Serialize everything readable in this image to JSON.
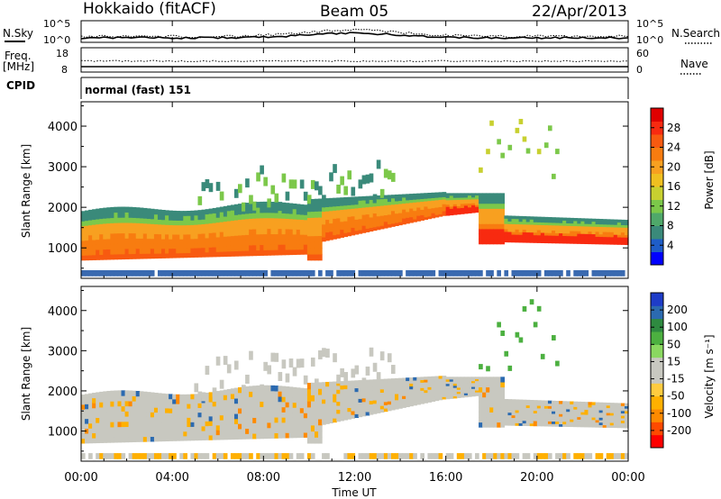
{
  "header": {
    "radar": "Hokkaido (fitACF)",
    "beam": "Beam 05",
    "date": "22/Apr/2013",
    "cpid_text": "normal (fast) 151"
  },
  "labels": {
    "nsky": "N.Sky",
    "nsearch": "N.Search",
    "freq": "Freq.",
    "freq_unit": "[MHz]",
    "nave": "Nave",
    "cpid": "CPID",
    "noise_ticks_left": [
      "10^5",
      "10^0"
    ],
    "noise_ticks_right": [
      "10^5",
      "10^0"
    ],
    "freq_ticks": [
      "18",
      "8"
    ],
    "nave_ticks": [
      "60",
      "0"
    ]
  },
  "chart_data": [
    {
      "type": "heatmap",
      "name": "power",
      "ylabel": "Slant Range [km]",
      "yticks": [
        "1000",
        "2000",
        "3000",
        "4000"
      ],
      "ylim": [
        250,
        4600
      ],
      "xlim": [
        0,
        24
      ],
      "colorbar": {
        "label": "Power [dB]",
        "ticks": [
          "4",
          "8",
          "12",
          "16",
          "20",
          "24",
          "28"
        ],
        "colors": [
          "#0000ff",
          "#1e5dc8",
          "#3a8a7a",
          "#4fa86a",
          "#7cc84a",
          "#c8d030",
          "#f0c020",
          "#f8a020",
          "#f87c10",
          "#f85a10",
          "#f82a10",
          "#e00000"
        ]
      }
    },
    {
      "type": "heatmap",
      "name": "velocity",
      "ylabel": "Slant Range [km]",
      "yticks": [
        "1000",
        "2000",
        "3000",
        "4000"
      ],
      "ylim": [
        250,
        4600
      ],
      "xlim": [
        0,
        24
      ],
      "colorbar": {
        "label": "Velocity [m s⁻¹]",
        "ticks": [
          "-200",
          "-100",
          "-50",
          "-15",
          "15",
          "50",
          "100",
          "200"
        ],
        "colors": [
          "#ff0000",
          "#ff4a00",
          "#ff8a00",
          "#ffb000",
          "#ffcc40",
          "#c8c8c0",
          "#c8c8c0",
          "#8ad860",
          "#4cb040",
          "#2e8a40",
          "#2b6ab0",
          "#1e3cc8"
        ]
      }
    }
  ],
  "time_axis": {
    "ticks": [
      "00:00",
      "04:00",
      "08:00",
      "12:00",
      "16:00",
      "20:00",
      "00:00"
    ],
    "label": "Time UT"
  }
}
